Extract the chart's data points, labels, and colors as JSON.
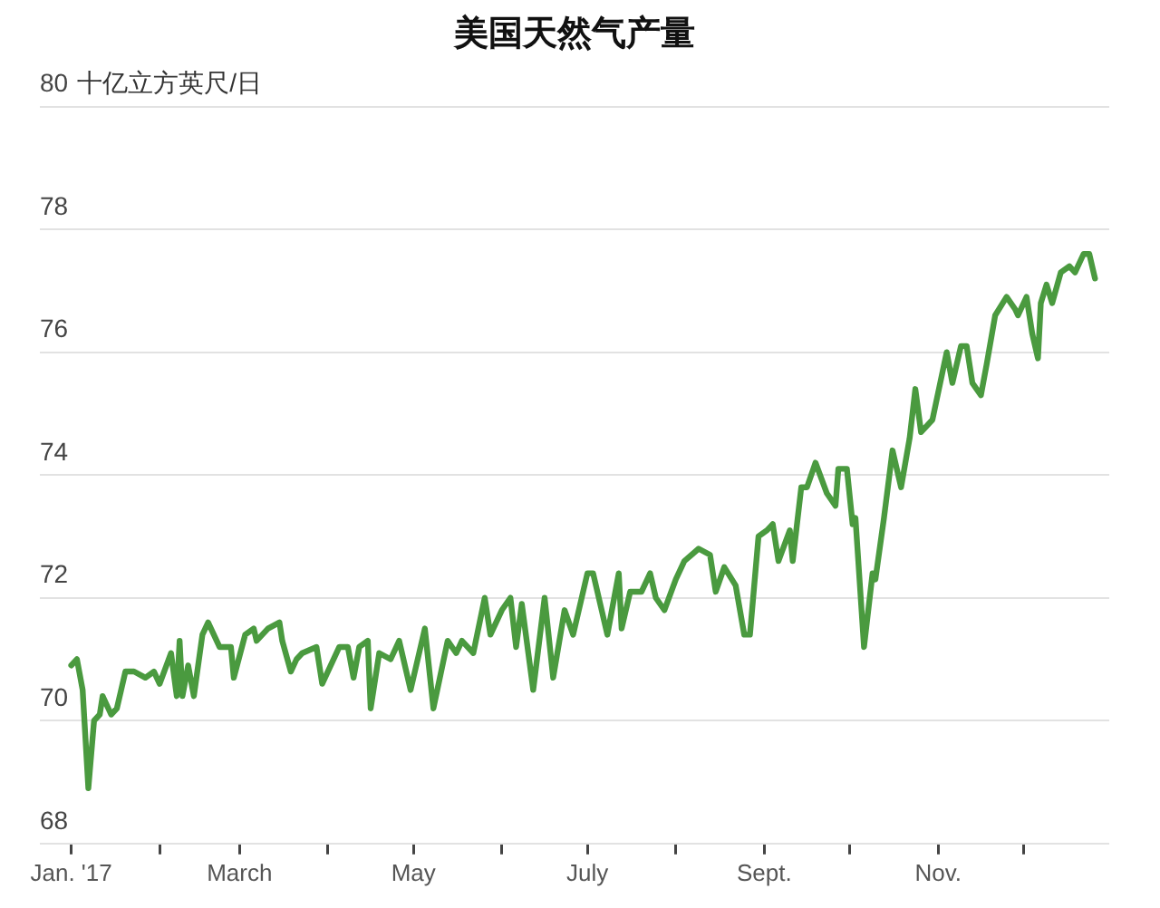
{
  "chart_data": {
    "type": "line",
    "title": "美国天然气产量",
    "ylabel": "十亿立方英尺/日",
    "x": [
      "2017-01-01",
      "2017-01-03",
      "2017-01-05",
      "2017-01-07",
      "2017-01-09",
      "2017-01-11",
      "2017-01-12",
      "2017-01-15",
      "2017-01-17",
      "2017-01-20",
      "2017-01-23",
      "2017-01-27",
      "2017-01-30",
      "2017-02-01",
      "2017-02-05",
      "2017-02-07",
      "2017-02-08",
      "2017-02-09",
      "2017-02-11",
      "2017-02-13",
      "2017-02-16",
      "2017-02-18",
      "2017-02-22",
      "2017-02-26",
      "2017-02-27",
      "2017-03-03",
      "2017-03-06",
      "2017-03-07",
      "2017-03-11",
      "2017-03-15",
      "2017-03-16",
      "2017-03-19",
      "2017-03-21",
      "2017-03-23",
      "2017-03-28",
      "2017-03-30",
      "2017-04-05",
      "2017-04-08",
      "2017-04-10",
      "2017-04-12",
      "2017-04-15",
      "2017-04-16",
      "2017-04-19",
      "2017-04-23",
      "2017-04-26",
      "2017-04-30",
      "2017-05-05",
      "2017-05-08",
      "2017-05-13",
      "2017-05-16",
      "2017-05-18",
      "2017-05-22",
      "2017-05-26",
      "2017-05-28",
      "2017-06-01",
      "2017-06-04",
      "2017-06-06",
      "2017-06-08",
      "2017-06-12",
      "2017-06-16",
      "2017-06-19",
      "2017-06-23",
      "2017-06-26",
      "2017-07-01",
      "2017-07-03",
      "2017-07-08",
      "2017-07-12",
      "2017-07-13",
      "2017-07-16",
      "2017-07-20",
      "2017-07-23",
      "2017-07-25",
      "2017-07-28",
      "2017-08-01",
      "2017-08-04",
      "2017-08-09",
      "2017-08-13",
      "2017-08-15",
      "2017-08-18",
      "2017-08-22",
      "2017-08-25",
      "2017-08-27",
      "2017-08-30",
      "2017-09-02",
      "2017-09-04",
      "2017-09-06",
      "2017-09-10",
      "2017-09-11",
      "2017-09-14",
      "2017-09-16",
      "2017-09-19",
      "2017-09-23",
      "2017-09-26",
      "2017-09-27",
      "2017-09-30",
      "2017-10-02",
      "2017-10-03",
      "2017-10-06",
      "2017-10-09",
      "2017-10-10",
      "2017-10-13",
      "2017-10-16",
      "2017-10-19",
      "2017-10-22",
      "2017-10-24",
      "2017-10-26",
      "2017-10-30",
      "2017-11-04",
      "2017-11-06",
      "2017-11-09",
      "2017-11-11",
      "2017-11-13",
      "2017-11-16",
      "2017-11-18",
      "2017-11-21",
      "2017-11-25",
      "2017-11-28",
      "2017-11-29",
      "2017-12-02",
      "2017-12-04",
      "2017-12-06",
      "2017-12-07",
      "2017-12-09",
      "2017-12-11",
      "2017-12-14",
      "2017-12-17",
      "2017-12-19",
      "2017-12-22",
      "2017-12-24",
      "2017-12-26"
    ],
    "series": [
      {
        "color": "#4a9a3f",
        "values": [
          70.9,
          71.0,
          70.5,
          68.9,
          70.0,
          70.1,
          70.4,
          70.1,
          70.2,
          70.8,
          70.8,
          70.7,
          70.8,
          70.6,
          71.1,
          70.4,
          71.3,
          70.4,
          70.9,
          70.4,
          71.4,
          71.6,
          71.2,
          71.2,
          70.7,
          71.4,
          71.5,
          71.3,
          71.5,
          71.6,
          71.3,
          70.8,
          71.0,
          71.1,
          71.2,
          70.6,
          71.2,
          71.2,
          70.7,
          71.2,
          71.3,
          70.2,
          71.1,
          71.0,
          71.3,
          70.5,
          71.5,
          70.2,
          71.3,
          71.1,
          71.3,
          71.1,
          72.0,
          71.4,
          71.8,
          72.0,
          71.2,
          71.9,
          70.5,
          72.0,
          70.7,
          71.8,
          71.4,
          72.4,
          72.4,
          71.4,
          72.4,
          71.5,
          72.1,
          72.1,
          72.4,
          72.0,
          71.8,
          72.3,
          72.6,
          72.8,
          72.7,
          72.1,
          72.5,
          72.2,
          71.4,
          71.4,
          73.0,
          73.1,
          73.2,
          72.6,
          73.1,
          72.6,
          73.8,
          73.8,
          74.2,
          73.7,
          73.5,
          74.1,
          74.1,
          73.2,
          73.3,
          71.2,
          72.4,
          72.3,
          73.3,
          74.4,
          73.8,
          74.6,
          75.4,
          74.7,
          74.9,
          76.0,
          75.5,
          76.1,
          76.1,
          75.5,
          75.3,
          75.8,
          76.6,
          76.9,
          76.7,
          76.6,
          76.9,
          76.3,
          75.9,
          76.8,
          77.1,
          76.8,
          77.3,
          77.4,
          77.3,
          77.6,
          77.6,
          77.2
        ]
      }
    ],
    "xlim": [
      "2016-12-21",
      "2017-12-31"
    ],
    "xticks": [
      {
        "value": "2017-01-01",
        "label": "Jan. '17"
      },
      {
        "value": "2017-02-01",
        "label": null
      },
      {
        "value": "2017-03-01",
        "label": "March"
      },
      {
        "value": "2017-04-01",
        "label": null
      },
      {
        "value": "2017-05-01",
        "label": "May"
      },
      {
        "value": "2017-06-01",
        "label": null
      },
      {
        "value": "2017-07-01",
        "label": "July"
      },
      {
        "value": "2017-08-01",
        "label": null
      },
      {
        "value": "2017-09-01",
        "label": "Sept."
      },
      {
        "value": "2017-10-01",
        "label": null
      },
      {
        "value": "2017-11-01",
        "label": "Nov."
      },
      {
        "value": "2017-12-01",
        "label": null
      }
    ],
    "ylim": [
      68,
      80
    ],
    "yticks": [
      68,
      70,
      72,
      74,
      76,
      78,
      80
    ],
    "grid": "y"
  }
}
